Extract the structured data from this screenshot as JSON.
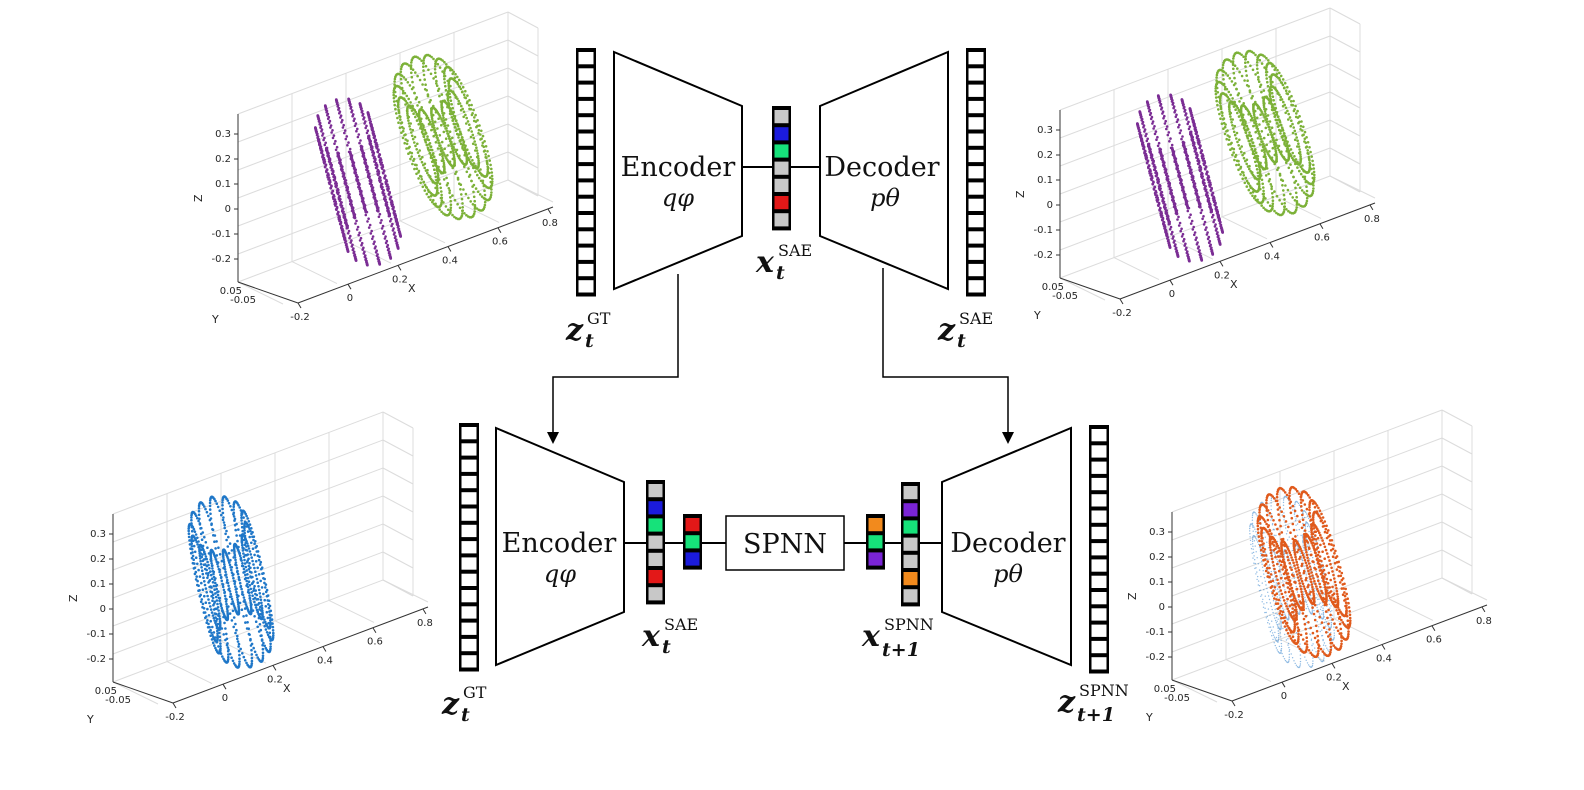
{
  "colors": {
    "purple": "#7b2d94",
    "green": "#7cb138",
    "blue": "#1f77c8",
    "orange": "#e05a1c",
    "cell_gray": "#c8c8c8",
    "cell_blue": "#1b1bdc",
    "cell_green": "#16e27a",
    "cell_red": "#e31818",
    "cell_orange": "#f28a1d",
    "cell_violet": "#7a24d6"
  },
  "plots": {
    "axis_x": "X",
    "axis_y": "Y",
    "axis_z": "Z",
    "z_ticks": [
      "0.3",
      "0.2",
      "0.1",
      "0",
      "-0.1",
      "-0.2"
    ],
    "x_ticks": [
      "-0.2",
      "0",
      "0.2",
      "0.4",
      "0.6",
      "0.8"
    ],
    "y_ticks": [
      "0.05",
      "-0.05"
    ]
  },
  "top": {
    "encoder_name": "Encoder",
    "encoder_param": "qφ",
    "decoder_name": "Decoder",
    "decoder_param": "pθ",
    "input_label": {
      "symbol": "z",
      "sub": "t",
      "sup": "GT"
    },
    "latent_label": {
      "symbol": "x",
      "sub": "t",
      "sup": "SAE"
    },
    "output_label": {
      "symbol": "z",
      "sub": "t",
      "sup": "SAE"
    }
  },
  "bottom": {
    "encoder_name": "Encoder",
    "encoder_param": "qφ",
    "decoder_name": "Decoder",
    "decoder_param": "pθ",
    "spnn_label": "SPNN",
    "input_label": {
      "symbol": "z",
      "sub": "t",
      "sup": "GT"
    },
    "latent_label": {
      "symbol": "x",
      "sub": "t",
      "sup": "SAE"
    },
    "next_latent_label": {
      "symbol": "x",
      "sub": "t+1",
      "sup": "SPNN"
    },
    "output_label": {
      "symbol": "z",
      "sub": "t+1",
      "sup": "SPNN"
    }
  }
}
